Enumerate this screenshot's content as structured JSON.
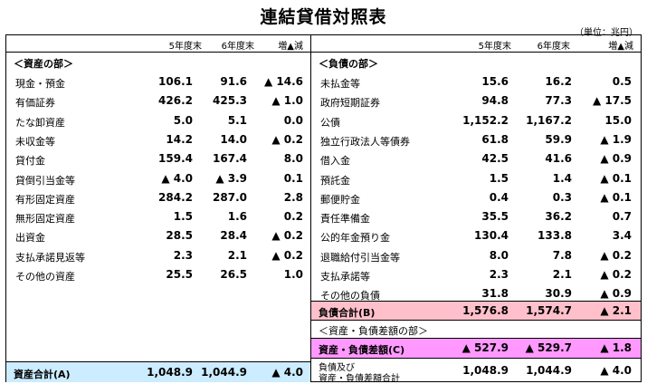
{
  "title": "連結貸借対照表",
  "unit": "（単位：兆円）",
  "columns": {
    "y5": "5年度末",
    "y6": "6年度末",
    "diff": "増▲減"
  },
  "assets": {
    "section": "＜資産の部＞",
    "rows": [
      {
        "label": "現金・預金",
        "y5": "106.1",
        "y6": "91.6",
        "diff": "▲ 14.6"
      },
      {
        "label": "有価証券",
        "y5": "426.2",
        "y6": "425.3",
        "diff": "▲ 1.0"
      },
      {
        "label": "たな卸資産",
        "y5": "5.0",
        "y6": "5.1",
        "diff": "0.0"
      },
      {
        "label": "未収金等",
        "y5": "14.2",
        "y6": "14.0",
        "diff": "▲ 0.2"
      },
      {
        "label": "貸付金",
        "y5": "159.4",
        "y6": "167.4",
        "diff": "8.0"
      },
      {
        "label": "貸倒引当金等",
        "y5": "▲ 4.0",
        "y6": "▲ 3.9",
        "diff": "0.1"
      },
      {
        "label": "有形固定資産",
        "y5": "284.2",
        "y6": "287.0",
        "diff": "2.8"
      },
      {
        "label": "無形固定資産",
        "y5": "1.5",
        "y6": "1.6",
        "diff": "0.2"
      },
      {
        "label": "出資金",
        "y5": "28.5",
        "y6": "28.4",
        "diff": "▲ 0.2"
      },
      {
        "label": "支払承諾見返等",
        "y5": "2.3",
        "y6": "2.1",
        "diff": "▲ 0.2"
      },
      {
        "label": "その他の資産",
        "y5": "25.5",
        "y6": "26.5",
        "diff": "1.0"
      }
    ],
    "total": {
      "label": "資産合計(A)",
      "y5": "1,048.9",
      "y6": "1,044.9",
      "diff": "▲ 4.0"
    }
  },
  "liabilities": {
    "section": "＜負債の部＞",
    "rows": [
      {
        "label": "未払金等",
        "y5": "15.6",
        "y6": "16.2",
        "diff": "0.5"
      },
      {
        "label": "政府短期証券",
        "y5": "94.8",
        "y6": "77.3",
        "diff": "▲ 17.5"
      },
      {
        "label": "公債",
        "y5": "1,152.2",
        "y6": "1,167.2",
        "diff": "15.0"
      },
      {
        "label": "独立行政法人等債券",
        "y5": "61.8",
        "y6": "59.9",
        "diff": "▲ 1.9"
      },
      {
        "label": "借入金",
        "y5": "42.5",
        "y6": "41.6",
        "diff": "▲ 0.9"
      },
      {
        "label": "預託金",
        "y5": "1.5",
        "y6": "1.4",
        "diff": "▲ 0.1"
      },
      {
        "label": "郵便貯金",
        "y5": "0.4",
        "y6": "0.3",
        "diff": "▲ 0.1"
      },
      {
        "label": "責任準備金",
        "y5": "35.5",
        "y6": "36.2",
        "diff": "0.7"
      },
      {
        "label": "公的年金預り金",
        "y5": "130.4",
        "y6": "133.8",
        "diff": "3.4"
      },
      {
        "label": "退職給付引当金等",
        "y5": "8.0",
        "y6": "7.8",
        "diff": "▲ 0.2"
      },
      {
        "label": "支払承諾等",
        "y5": "2.3",
        "y6": "2.1",
        "diff": "▲ 0.2"
      },
      {
        "label": "その他の負債",
        "y5": "31.8",
        "y6": "30.9",
        "diff": "▲ 0.9"
      }
    ],
    "total": {
      "label": "負債合計(B)",
      "y5": "1,576.8",
      "y6": "1,574.7",
      "diff": "▲ 2.1"
    }
  },
  "net": {
    "section": "＜資産・負債差額の部＞",
    "row": {
      "label": "資産・負債差額(C)",
      "y5": "▲ 527.9",
      "y6": "▲ 529.7",
      "diff": "▲ 1.8"
    },
    "total": {
      "label1": "負債及び",
      "label2": "資産・負債差額合計",
      "y5": "1,048.9",
      "y6": "1,044.9",
      "diff": "▲ 4.0"
    }
  }
}
